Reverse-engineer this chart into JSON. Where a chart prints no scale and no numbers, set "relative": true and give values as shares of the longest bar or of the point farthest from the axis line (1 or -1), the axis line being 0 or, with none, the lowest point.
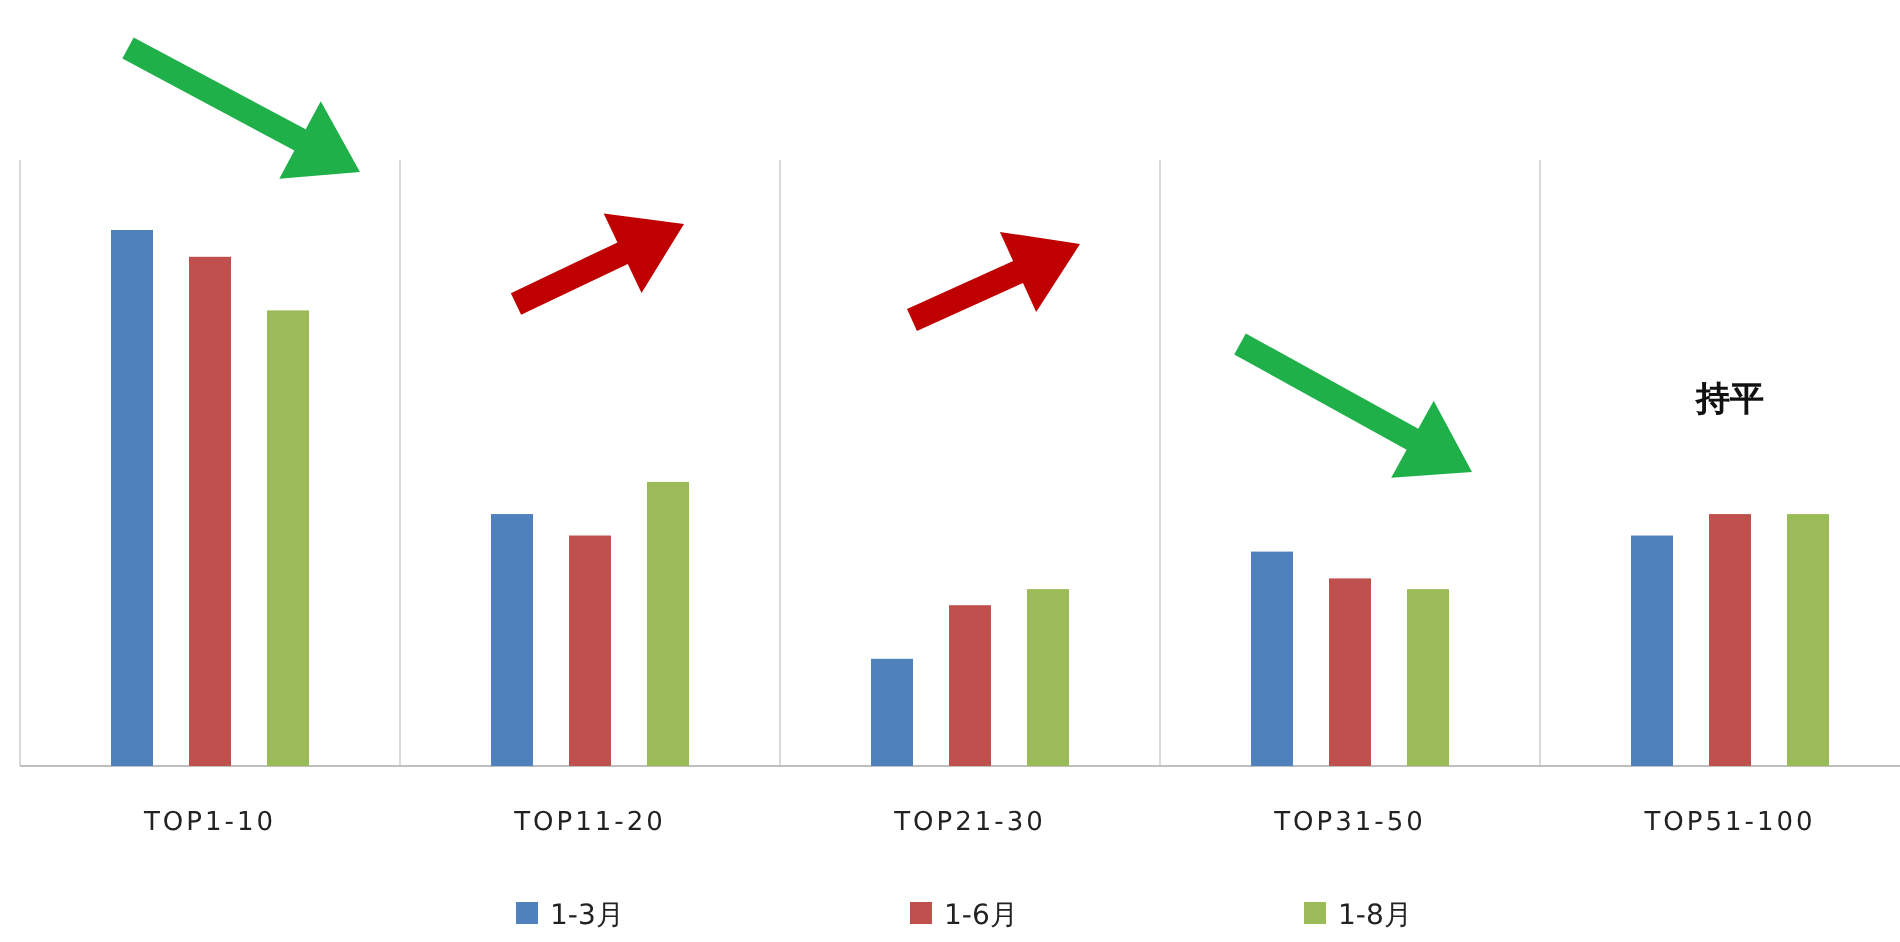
{
  "chart_data": {
    "type": "bar",
    "relative": true,
    "categories": [
      "TOP1-10",
      "TOP11-20",
      "TOP21-30",
      "TOP31-50",
      "TOP51-100"
    ],
    "series": [
      {
        "name": "1-3月",
        "color": "#4f81bd",
        "values": [
          1,
          0.47,
          0.2,
          0.4,
          0.43
        ]
      },
      {
        "name": "1-6月",
        "color": "#c0504d",
        "values": [
          0.95,
          0.43,
          0.3,
          0.35,
          0.47
        ]
      },
      {
        "name": "1-8月",
        "color": "#9bbb59",
        "values": [
          0.85,
          0.53,
          0.33,
          0.33,
          0.47
        ]
      }
    ],
    "annotations": [
      "持平"
    ],
    "grid": "x",
    "legend": "bottom"
  }
}
